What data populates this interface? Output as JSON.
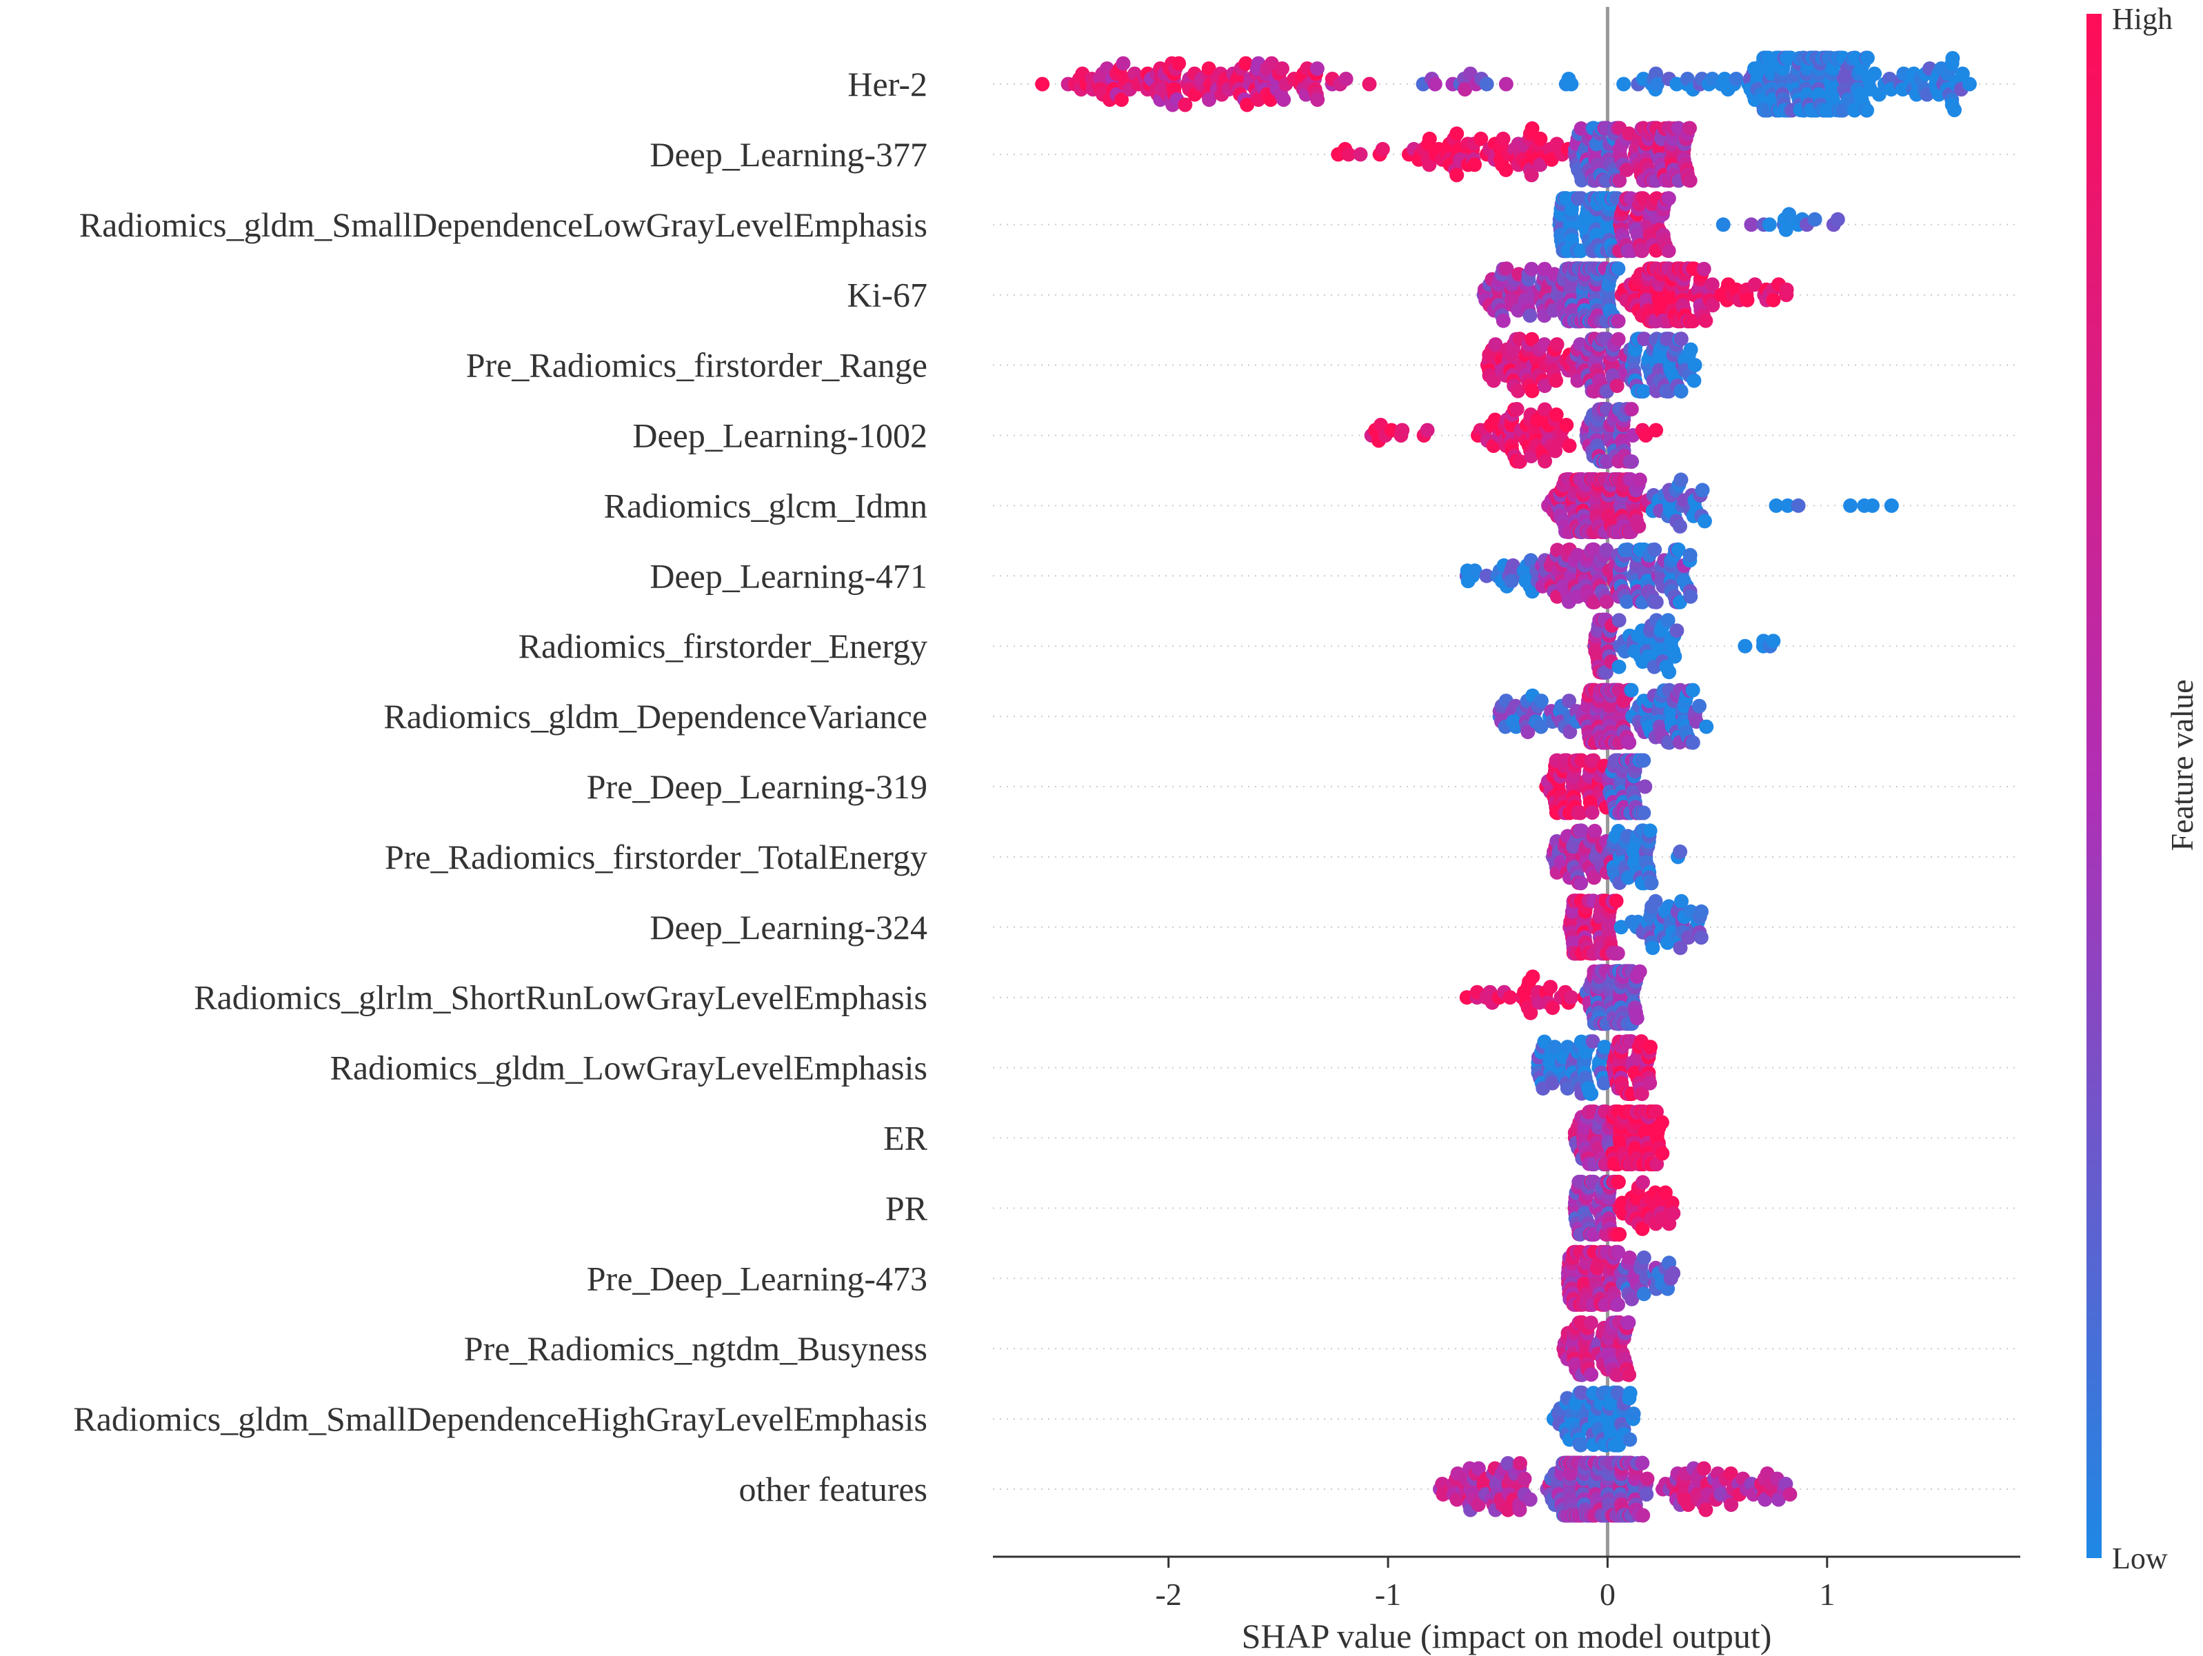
{
  "chart_data": {
    "type": "scatter",
    "subtype": "shap-beeswarm",
    "title": "",
    "xlabel": "SHAP value (impact on model output)",
    "ylabel": "",
    "xlim": [
      -2.8,
      1.88
    ],
    "x_ticks": [
      -2,
      -1,
      0,
      1
    ],
    "x_tick_labels": [
      "-2",
      "-1",
      "0",
      "1"
    ],
    "zero_line": 0,
    "colorbar": {
      "label": "Feature value",
      "high_label": "High",
      "low_label": "Low",
      "low_color": "#1e88e5",
      "high_color": "#ff0d57",
      "mid_color": "#b02fb5"
    },
    "features": [
      {
        "name": "Her-2",
        "seed": 11,
        "groups": [
          {
            "min": -2.6,
            "max": -1.0,
            "n": 130,
            "c": 0.75
          },
          {
            "min": -0.85,
            "max": -0.45,
            "n": 12,
            "c": 0.35
          },
          {
            "min": -0.3,
            "max": -0.15,
            "n": 3,
            "c": 0.0
          },
          {
            "min": 0.0,
            "max": 0.6,
            "n": 22,
            "c": 0.0
          },
          {
            "min": 0.6,
            "max": 1.25,
            "n": 190,
            "c": 0.0
          },
          {
            "min": 1.25,
            "max": 1.68,
            "n": 40,
            "c": 0.0
          }
        ]
      },
      {
        "name": "Deep_Learning-377",
        "seed": 12,
        "groups": [
          {
            "min": -1.25,
            "max": -1.0,
            "n": 6,
            "c": 1.0
          },
          {
            "min": -0.95,
            "max": -0.15,
            "n": 70,
            "c": 0.95
          },
          {
            "min": -0.15,
            "max": 0.05,
            "n": 60,
            "c": 0.3
          },
          {
            "min": 0.05,
            "max": 0.38,
            "n": 80,
            "c": 0.65
          }
        ]
      },
      {
        "name": "Radiomics_gldm_SmallDependenceLowGrayLevelEmphasis",
        "seed": 13,
        "groups": [
          {
            "min": -0.22,
            "max": 0.05,
            "n": 110,
            "c": 0.0
          },
          {
            "min": 0.05,
            "max": 0.28,
            "n": 60,
            "c": 0.7
          },
          {
            "min": 0.4,
            "max": 1.2,
            "n": 14,
            "c": 0.15
          }
        ]
      },
      {
        "name": "Ki-67",
        "seed": 14,
        "groups": [
          {
            "min": -0.58,
            "max": -0.2,
            "n": 60,
            "c": 0.5
          },
          {
            "min": -0.2,
            "max": 0.05,
            "n": 120,
            "c": 0.3
          },
          {
            "min": 0.05,
            "max": 0.5,
            "n": 120,
            "c": 0.85
          },
          {
            "min": 0.5,
            "max": 0.83,
            "n": 20,
            "c": 0.95
          }
        ]
      },
      {
        "name": "Pre_Radiomics_firstorder_Range",
        "seed": 15,
        "groups": [
          {
            "min": -0.55,
            "max": -0.15,
            "n": 60,
            "c": 0.85
          },
          {
            "min": -0.15,
            "max": 0.1,
            "n": 50,
            "c": 0.5
          },
          {
            "min": 0.1,
            "max": 0.4,
            "n": 70,
            "c": 0.1
          }
        ]
      },
      {
        "name": "Deep_Learning-1002",
        "seed": 16,
        "groups": [
          {
            "min": -1.08,
            "max": -0.7,
            "n": 10,
            "c": 1.0
          },
          {
            "min": -0.6,
            "max": -0.1,
            "n": 60,
            "c": 0.9
          },
          {
            "min": -0.1,
            "max": 0.12,
            "n": 60,
            "c": 0.4
          },
          {
            "min": 0.12,
            "max": 0.25,
            "n": 3,
            "c": 0.9
          }
        ]
      },
      {
        "name": "Radiomics_glcm_Idmn",
        "seed": 17,
        "groups": [
          {
            "min": -0.28,
            "max": 0.2,
            "n": 160,
            "c": 0.65
          },
          {
            "min": 0.2,
            "max": 0.45,
            "n": 30,
            "c": 0.1
          },
          {
            "min": 0.7,
            "max": 1.38,
            "n": 7,
            "c": 0.0
          }
        ]
      },
      {
        "name": "Deep_Learning-471",
        "seed": 18,
        "groups": [
          {
            "min": -0.65,
            "max": -0.3,
            "n": 25,
            "c": 0.05
          },
          {
            "min": -0.3,
            "max": 0.05,
            "n": 70,
            "c": 0.55
          },
          {
            "min": 0.05,
            "max": 0.38,
            "n": 70,
            "c": 0.25
          }
        ]
      },
      {
        "name": "Radiomics_firstorder_Energy",
        "seed": 19,
        "groups": [
          {
            "min": -0.06,
            "max": 0.02,
            "n": 40,
            "c": 0.55
          },
          {
            "min": 0.05,
            "max": 0.32,
            "n": 40,
            "c": 0.0
          },
          {
            "min": 0.62,
            "max": 0.76,
            "n": 5,
            "c": 0.0
          }
        ]
      },
      {
        "name": "Radiomics_gldm_DependenceVariance",
        "seed": 20,
        "groups": [
          {
            "min": -0.5,
            "max": -0.1,
            "n": 40,
            "c": 0.2
          },
          {
            "min": -0.1,
            "max": 0.1,
            "n": 90,
            "c": 0.6
          },
          {
            "min": 0.1,
            "max": 0.45,
            "n": 60,
            "c": 0.15
          }
        ]
      },
      {
        "name": "Pre_Deep_Learning-319",
        "seed": 21,
        "groups": [
          {
            "min": -0.28,
            "max": 0.0,
            "n": 70,
            "c": 0.85
          },
          {
            "min": 0.0,
            "max": 0.18,
            "n": 70,
            "c": 0.3
          }
        ]
      },
      {
        "name": "Pre_Radiomics_firstorder_TotalEnergy",
        "seed": 22,
        "groups": [
          {
            "min": -0.25,
            "max": 0.02,
            "n": 50,
            "c": 0.55
          },
          {
            "min": 0.02,
            "max": 0.2,
            "n": 45,
            "c": 0.05
          },
          {
            "min": 0.3,
            "max": 0.35,
            "n": 2,
            "c": 0.0
          }
        ]
      },
      {
        "name": "Deep_Learning-324",
        "seed": 23,
        "groups": [
          {
            "min": -0.18,
            "max": 0.05,
            "n": 90,
            "c": 0.75
          },
          {
            "min": 0.05,
            "max": 0.47,
            "n": 45,
            "c": 0.1
          }
        ]
      },
      {
        "name": "Radiomics_glrlm_ShortRunLowGrayLevelEmphasis",
        "seed": 24,
        "groups": [
          {
            "min": -0.73,
            "max": -0.1,
            "n": 30,
            "c": 0.95
          },
          {
            "min": -0.1,
            "max": 0.15,
            "n": 80,
            "c": 0.35
          }
        ]
      },
      {
        "name": "Radiomics_gldm_LowGrayLevelEmphasis",
        "seed": 25,
        "groups": [
          {
            "min": -0.32,
            "max": 0.02,
            "n": 60,
            "c": 0.05
          },
          {
            "min": 0.02,
            "max": 0.2,
            "n": 50,
            "c": 0.8
          }
        ]
      },
      {
        "name": "ER",
        "seed": 26,
        "groups": [
          {
            "min": -0.15,
            "max": 0.02,
            "n": 50,
            "c": 0.55
          },
          {
            "min": 0.02,
            "max": 0.25,
            "n": 80,
            "c": 0.95
          }
        ]
      },
      {
        "name": "PR",
        "seed": 27,
        "groups": [
          {
            "min": -0.15,
            "max": 0.02,
            "n": 60,
            "c": 0.45
          },
          {
            "min": 0.02,
            "max": 0.3,
            "n": 40,
            "c": 0.95
          }
        ]
      },
      {
        "name": "Pre_Deep_Learning-473",
        "seed": 28,
        "groups": [
          {
            "min": -0.18,
            "max": 0.05,
            "n": 90,
            "c": 0.7
          },
          {
            "min": 0.05,
            "max": 0.3,
            "n": 30,
            "c": 0.3
          }
        ]
      },
      {
        "name": "Pre_Radiomics_ngtdm_Busyness",
        "seed": 29,
        "groups": [
          {
            "min": -0.2,
            "max": 0.1,
            "n": 70,
            "c": 0.6
          }
        ]
      },
      {
        "name": "Radiomics_gldm_SmallDependenceHighGrayLevelEmphasis",
        "seed": 30,
        "groups": [
          {
            "min": -0.25,
            "max": 0.12,
            "n": 80,
            "c": 0.05
          }
        ]
      },
      {
        "name": "other features",
        "seed": 31,
        "groups": [
          {
            "min": -0.8,
            "max": -0.3,
            "n": 60,
            "c": 0.6
          },
          {
            "min": -0.3,
            "max": 0.2,
            "n": 220,
            "c": 0.45
          },
          {
            "min": 0.2,
            "max": 0.87,
            "n": 60,
            "c": 0.65
          }
        ]
      }
    ]
  }
}
